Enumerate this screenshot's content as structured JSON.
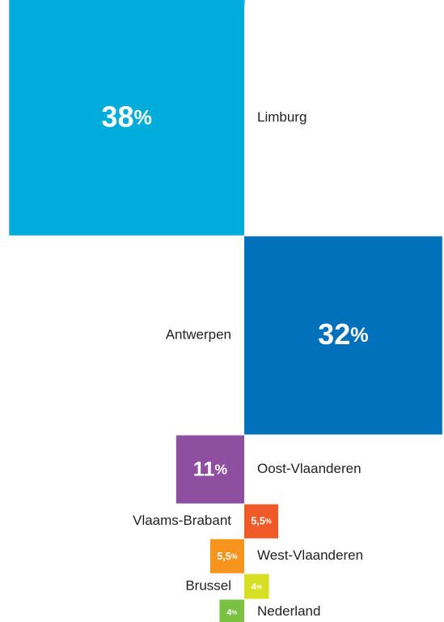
{
  "chart_data": {
    "type": "bar",
    "categories": [
      "Limburg",
      "Antwerpen",
      "Oost-Vlaanderen",
      "Vlaams-Brabant",
      "West-Vlaanderen",
      "Brussel",
      "Nederland"
    ],
    "values": [
      38,
      32,
      11,
      5.5,
      5.5,
      4,
      4
    ],
    "value_labels": [
      "38%",
      "32%",
      "11%",
      "5,5%",
      "5,5%",
      "4%",
      "4%"
    ],
    "colors": [
      "#00acd9",
      "#0070bb",
      "#8e4fa0",
      "#f05a28",
      "#f7941d",
      "#d7df23",
      "#7ac143"
    ]
  }
}
